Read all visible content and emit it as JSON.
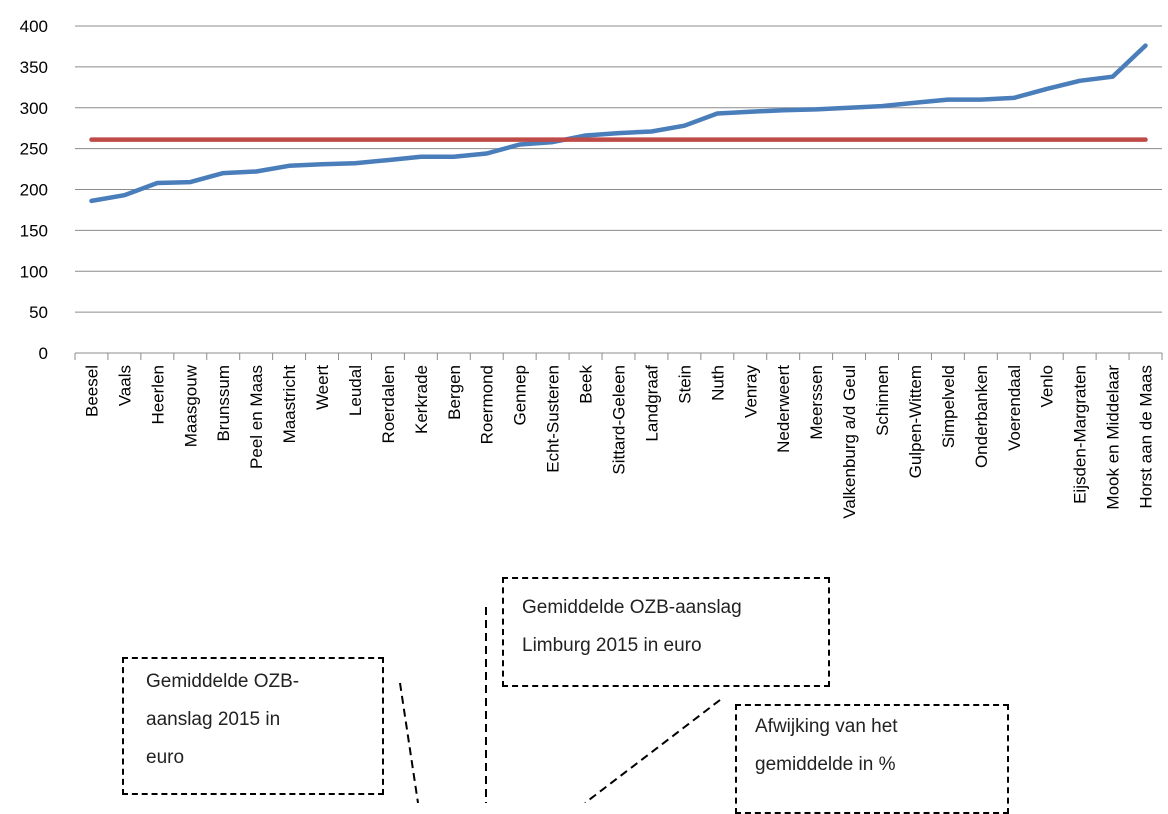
{
  "chart_data": {
    "type": "line",
    "categories": [
      "Beesel",
      "Vaals",
      "Heerlen",
      "Maasgouw",
      "Brunssum",
      "Peel en Maas",
      "Maastricht",
      "Weert",
      "Leudal",
      "Roerdalen",
      "Kerkrade",
      "Bergen",
      "Roermond",
      "Gennep",
      "Echt-Susteren",
      "Beek",
      "Sittard-Geleen",
      "Landgraaf",
      "Stein",
      "Nuth",
      "Venray",
      "Nederweert",
      "Meerssen",
      "Valkenburg a/d Geul",
      "Schinnen",
      "Gulpen-Wittem",
      "Simpelveld",
      "Onderbanken",
      "Voerendaal",
      "Venlo",
      "Eijsden-Margraten",
      "Mook en Middelaar",
      "Horst aan de Maas"
    ],
    "series": [
      {
        "values": [
          186,
          193,
          208,
          209,
          220,
          222,
          229,
          231,
          232,
          236,
          240,
          240,
          244,
          255,
          258,
          266,
          269,
          271,
          278,
          293,
          295,
          297,
          298,
          300,
          302,
          306,
          310,
          310,
          312,
          323,
          333,
          338,
          376
        ],
        "color": "#4a7ebb"
      },
      {
        "values": [
          261,
          261,
          261,
          261,
          261,
          261,
          261,
          261,
          261,
          261,
          261,
          261,
          261,
          261,
          261,
          261,
          261,
          261,
          261,
          261,
          261,
          261,
          261,
          261,
          261,
          261,
          261,
          261,
          261,
          261,
          261,
          261,
          261
        ],
        "color": "#be4b48"
      }
    ],
    "yticks": [
      0,
      50,
      100,
      150,
      200,
      250,
      300,
      350,
      400
    ],
    "ylim": [
      0,
      400
    ],
    "grid": true
  },
  "callouts": {
    "province": "Gemiddelde OZB-aanslag\nLimburg 2015 in euro",
    "municipal": "Gemiddelde OZB-\naanslag 2015 in\neuro",
    "deviation": "Afwijking van het\ngemiddelde in %"
  }
}
